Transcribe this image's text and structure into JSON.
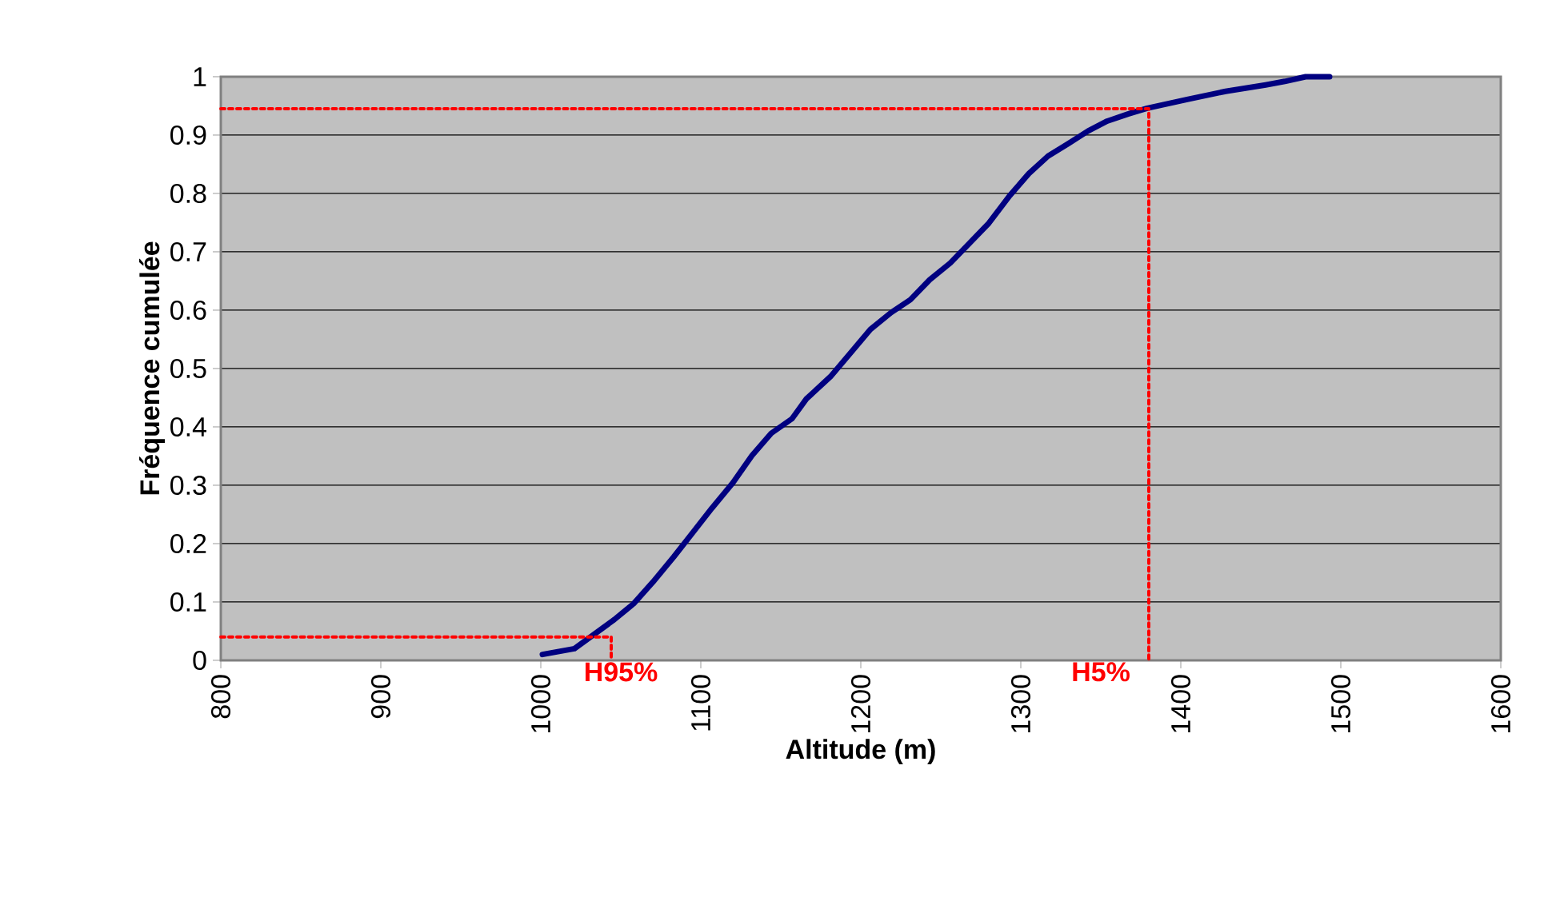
{
  "chart_data": {
    "type": "line",
    "xlabel": "Altitude (m)",
    "ylabel": "Fréquence cumulée",
    "xlim": [
      800,
      1600
    ],
    "xticks": [
      800,
      900,
      1000,
      1100,
      1200,
      1300,
      1400,
      1500,
      1600
    ],
    "ylim": [
      0,
      1
    ],
    "yticks": [
      0,
      0.1,
      0.2,
      0.3,
      0.4,
      0.5,
      0.6,
      0.7,
      0.8,
      0.9,
      1
    ],
    "grid": "y",
    "marker": "none",
    "series": [
      {
        "color": "#000080",
        "line_style": "solid",
        "x": [
          1001,
          1021,
          1033,
          1046,
          1058,
          1070,
          1083,
          1095,
          1107,
          1120,
          1132,
          1144,
          1157,
          1166,
          1181,
          1194,
          1206,
          1219,
          1231,
          1243,
          1256,
          1268,
          1280,
          1293,
          1305,
          1317,
          1330,
          1342,
          1354,
          1367,
          1379,
          1404,
          1428,
          1453,
          1465,
          1478,
          1493
        ],
        "values": [
          0.01,
          0.02,
          0.044,
          0.07,
          0.097,
          0.134,
          0.177,
          0.219,
          0.261,
          0.304,
          0.351,
          0.389,
          0.414,
          0.448,
          0.486,
          0.528,
          0.567,
          0.596,
          0.618,
          0.652,
          0.681,
          0.715,
          0.749,
          0.796,
          0.834,
          0.864,
          0.886,
          0.907,
          0.924,
          0.936,
          0.946,
          0.961,
          0.975,
          0.986,
          0.992,
          1.0,
          1.0
        ]
      },
      {
        "color": "#ff0000",
        "line_style": "dotted",
        "x": [
          800,
          1044,
          1044
        ],
        "values": [
          0.04,
          0.04,
          0
        ]
      },
      {
        "color": "#ff0000",
        "line_style": "dotted",
        "x": [
          800,
          1380,
          1380
        ],
        "values": [
          0.945,
          0.945,
          0
        ]
      }
    ],
    "annotations": [
      {
        "text": "H95%",
        "x": 1044,
        "y": 0
      },
      {
        "text": "H5%",
        "x": 1380,
        "y": 0
      }
    ]
  }
}
